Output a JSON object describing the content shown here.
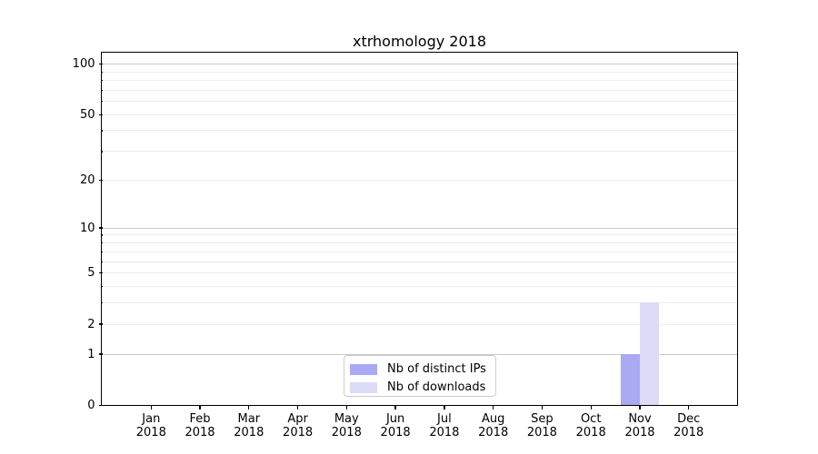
{
  "chart_data": {
    "type": "bar",
    "title": "xtrhomology 2018",
    "categories": [
      "Jan 2018",
      "Feb 2018",
      "Mar 2018",
      "Apr 2018",
      "May 2018",
      "Jun 2018",
      "Jul 2018",
      "Aug 2018",
      "Sep 2018",
      "Oct 2018",
      "Nov 2018",
      "Dec 2018"
    ],
    "series": [
      {
        "name": "Nb of distinct IPs",
        "color": "#a9a9f4",
        "values": [
          0,
          0,
          0,
          0,
          0,
          0,
          0,
          0,
          0,
          0,
          1,
          0
        ]
      },
      {
        "name": "Nb of downloads",
        "color": "#dcdcf8",
        "values": [
          0,
          0,
          0,
          0,
          0,
          0,
          0,
          0,
          0,
          0,
          3,
          0
        ]
      }
    ],
    "xlabel": "",
    "ylabel": "",
    "yticks": [
      0,
      1,
      2,
      5,
      10,
      20,
      50,
      100
    ],
    "major_gridlines": [
      1,
      10,
      100
    ],
    "minor_gridlines": [
      2,
      3,
      4,
      5,
      6,
      7,
      8,
      9,
      20,
      30,
      40,
      50,
      60,
      70,
      80,
      90
    ],
    "scale": "log1p",
    "ylim": [
      0,
      116
    ],
    "grid": true,
    "legend_position": "lower center",
    "colors": {
      "axis": "#000000",
      "major_grid": "#c9c9c9",
      "minor_grid": "#ececec"
    }
  }
}
